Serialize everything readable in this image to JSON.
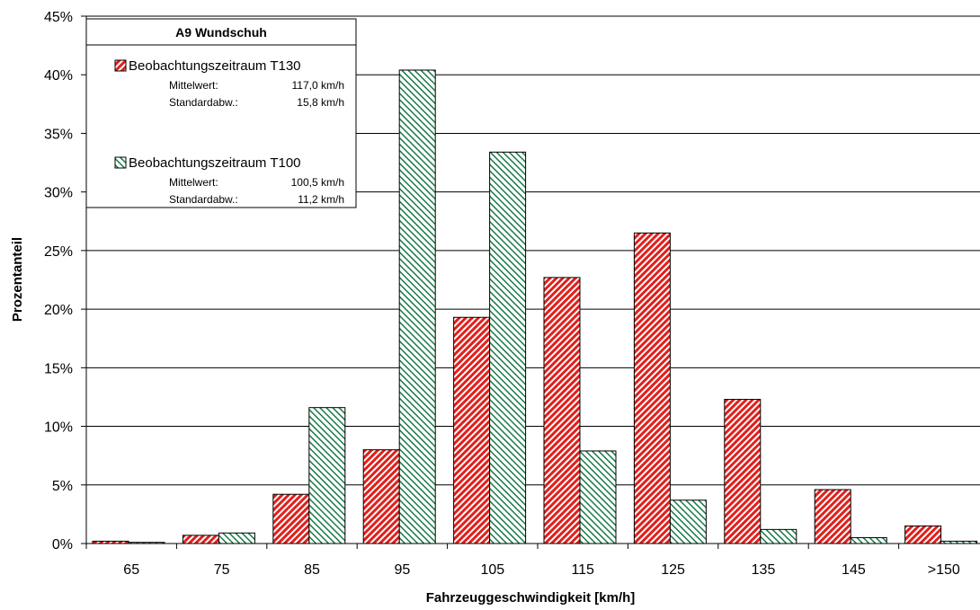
{
  "chart_data": {
    "type": "bar",
    "title": "",
    "xlabel": "Fahrzeuggeschwindigkeit [km/h]",
    "ylabel": "Prozentanteil",
    "ylim": [
      0,
      45
    ],
    "y_ticks": [
      0,
      5,
      10,
      15,
      20,
      25,
      30,
      35,
      40,
      45
    ],
    "y_tick_format": "percent",
    "grid": true,
    "categories": [
      "65",
      "75",
      "85",
      "95",
      "105",
      "115",
      "125",
      "135",
      "145",
      ">150"
    ],
    "series": [
      {
        "name": "Beobachtungszeitraum T130",
        "color": "#e0201c",
        "pattern": "diagonal-hatch",
        "values": [
          0.2,
          0.7,
          4.2,
          8.0,
          19.3,
          22.7,
          26.5,
          12.3,
          4.6,
          1.5
        ]
      },
      {
        "name": "Beobachtungszeitraum T100",
        "color": "#1a7a48",
        "pattern": "diagonal-hatch",
        "values": [
          0.1,
          0.9,
          11.6,
          40.4,
          33.4,
          7.9,
          3.7,
          1.2,
          0.5,
          0.2
        ]
      }
    ],
    "legend": {
      "placement": "top-left",
      "title": "A9 Wundschuh",
      "entries": [
        {
          "series": "Beobachtungszeitraum T130",
          "stats": [
            {
              "label": "Mittelwert:",
              "value": "117,0 km/h"
            },
            {
              "label": "Standardabw.:",
              "value": "15,8 km/h"
            }
          ]
        },
        {
          "series": "Beobachtungszeitraum T100",
          "stats": [
            {
              "label": "Mittelwert:",
              "value": "100,5 km/h"
            },
            {
              "label": "Standardabw.:",
              "value": "11,2 km/h"
            }
          ]
        }
      ]
    }
  }
}
